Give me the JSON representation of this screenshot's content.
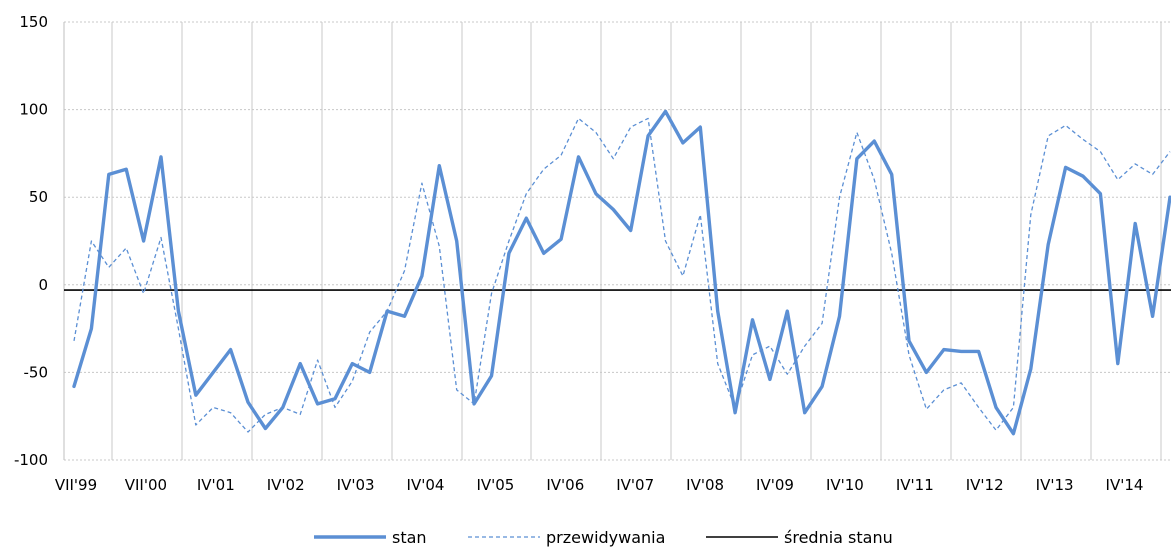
{
  "chart_data": {
    "type": "line",
    "title": "",
    "xlabel": "",
    "ylabel": "",
    "ylim": [
      -100,
      150
    ],
    "yticks": [
      -100,
      -50,
      0,
      50,
      100,
      150
    ],
    "grid": true,
    "legend_position": "bottom",
    "x_tick_labels": [
      "VII'99",
      "VII'00",
      "IV'01",
      "IV'02",
      "IV'03",
      "IV'04",
      "IV'05",
      "IV'06",
      "IV'07",
      "IV'08",
      "IV'09",
      "IV'10",
      "IV'11",
      "IV'12",
      "IV'13",
      "IV'14"
    ],
    "colors": {
      "stan": "#5b8fd4",
      "przewidywania": "#5b8fd4",
      "srednia": "#000000",
      "grid": "#c8c8c8"
    },
    "series": [
      {
        "name": "stan",
        "style": "solid-thick",
        "values": [
          -58,
          -25,
          63,
          66,
          25,
          73,
          -15,
          -63,
          -50,
          -37,
          -67,
          -82,
          -70,
          -45,
          -68,
          -65,
          -45,
          -50,
          -15,
          -18,
          5,
          68,
          25,
          -68,
          -52,
          18,
          38,
          18,
          26,
          73,
          52,
          43,
          31,
          85,
          99,
          81,
          90,
          -15,
          -73,
          -20,
          -54,
          -15,
          -73,
          -58,
          -18,
          72,
          82,
          63,
          -32,
          -50,
          -37,
          -38,
          -38,
          -70,
          -85,
          -48,
          23,
          67,
          62,
          52,
          -45,
          35,
          -18,
          50
        ]
      },
      {
        "name": "przewidywania",
        "style": "dashed-thin",
        "values": [
          -32,
          25,
          10,
          21,
          -5,
          27,
          -25,
          -80,
          -70,
          -73,
          -84,
          -74,
          -70,
          -74,
          -43,
          -70,
          -55,
          -27,
          -15,
          8,
          58,
          22,
          -60,
          -68,
          -5,
          25,
          52,
          66,
          74,
          95,
          87,
          72,
          90,
          95,
          25,
          5,
          40,
          -45,
          -70,
          -40,
          -35,
          -51,
          -35,
          -22,
          50,
          87,
          60,
          18,
          -40,
          -71,
          -60,
          -56,
          -70,
          -83,
          -70,
          40,
          85,
          91,
          83,
          76,
          60,
          69,
          63,
          76
        ]
      },
      {
        "name": "średnia stanu",
        "style": "solid-black",
        "values": [
          -3
        ]
      }
    ]
  }
}
